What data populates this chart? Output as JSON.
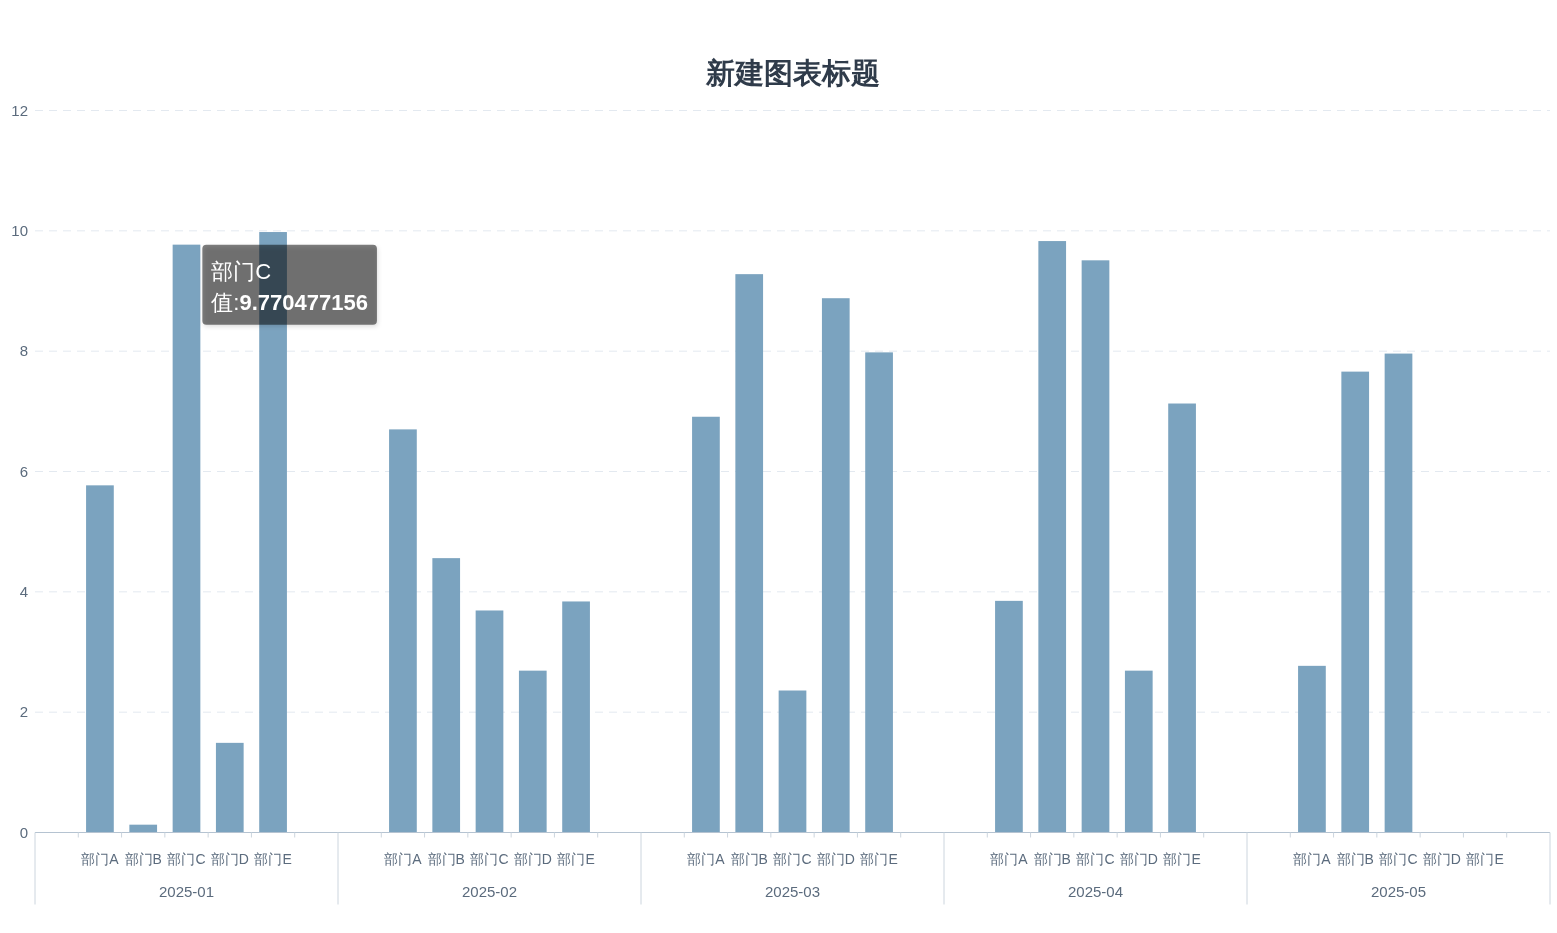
{
  "chart_data": {
    "type": "bar",
    "title": "新建图表标题",
    "categories": [
      "2025-01",
      "2025-02",
      "2025-03",
      "2025-04",
      "2025-05"
    ],
    "series": [
      {
        "name": "部门A",
        "color": "#7ba3bf",
        "values": [
          5.77,
          6.7,
          6.91,
          3.85,
          2.77
        ]
      },
      {
        "name": "部门B",
        "color": "#7ba3bf",
        "values": [
          0.13,
          4.56,
          9.28,
          9.83,
          7.66
        ]
      },
      {
        "name": "部门C",
        "color": "#7ba3bf",
        "values": [
          9.770477156,
          3.69,
          2.36,
          9.51,
          7.96
        ]
      },
      {
        "name": "部门D",
        "color": "#7ba3bf",
        "values": [
          1.49,
          2.69,
          8.88,
          2.69,
          null
        ]
      },
      {
        "name": "部门E",
        "color": "#7ba3bf",
        "values": [
          9.98,
          3.84,
          7.98,
          7.13,
          null
        ]
      }
    ],
    "ylim": [
      0,
      12
    ],
    "yticks": [
      0,
      2,
      4,
      6,
      8,
      10,
      12
    ],
    "grid": "y",
    "legend": "bottom",
    "annotations": [
      {
        "text": "部门C\n值:9.770477156",
        "x": "2025-01",
        "y": 9.770477156
      }
    ]
  }
}
